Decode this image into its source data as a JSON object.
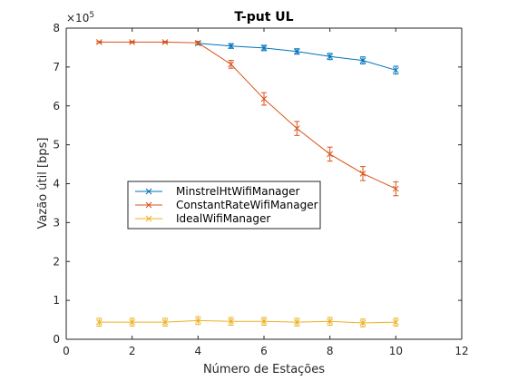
{
  "chart_data": {
    "type": "line",
    "title": "T-put UL",
    "xlabel": "Número de Estações",
    "ylabel": "Vazão útil [bps]",
    "exponent_base": "×10",
    "exponent_power": "5",
    "xlim": [
      0,
      12
    ],
    "ylim": [
      0,
      8
    ],
    "y_scale_factor": 100000,
    "xticks": [
      0,
      2,
      4,
      6,
      8,
      10,
      12
    ],
    "yticks": [
      0,
      1,
      2,
      3,
      4,
      5,
      6,
      7,
      8
    ],
    "grid": false,
    "legend_position": "center-left",
    "marker": "x",
    "error_bars": true,
    "series": [
      {
        "name": "MinstrelHtWifiManager",
        "color": "#0072BD",
        "x": [
          4,
          5,
          6,
          7,
          8,
          9,
          10
        ],
        "y": [
          7.61,
          7.54,
          7.49,
          7.4,
          7.27,
          7.17,
          6.92
        ],
        "err": [
          0.04,
          0.06,
          0.07,
          0.07,
          0.08,
          0.09,
          0.1
        ]
      },
      {
        "name": "ConstantRateWifiManager",
        "color": "#D95319",
        "x": [
          1,
          2,
          3,
          4,
          5,
          6,
          7,
          8,
          9,
          10
        ],
        "y": [
          7.64,
          7.64,
          7.64,
          7.62,
          7.07,
          6.18,
          5.42,
          4.76,
          4.26,
          3.87
        ],
        "err": [
          0.02,
          0.02,
          0.02,
          0.04,
          0.1,
          0.16,
          0.18,
          0.18,
          0.18,
          0.18
        ]
      },
      {
        "name": "IdealWifiManager",
        "color": "#EDB120",
        "x": [
          1,
          2,
          3,
          4,
          5,
          6,
          7,
          8,
          9,
          10
        ],
        "y": [
          0.44,
          0.44,
          0.44,
          0.48,
          0.46,
          0.46,
          0.44,
          0.46,
          0.42,
          0.44
        ],
        "err": [
          0.1,
          0.1,
          0.1,
          0.1,
          0.1,
          0.1,
          0.1,
          0.1,
          0.1,
          0.1
        ]
      }
    ]
  }
}
